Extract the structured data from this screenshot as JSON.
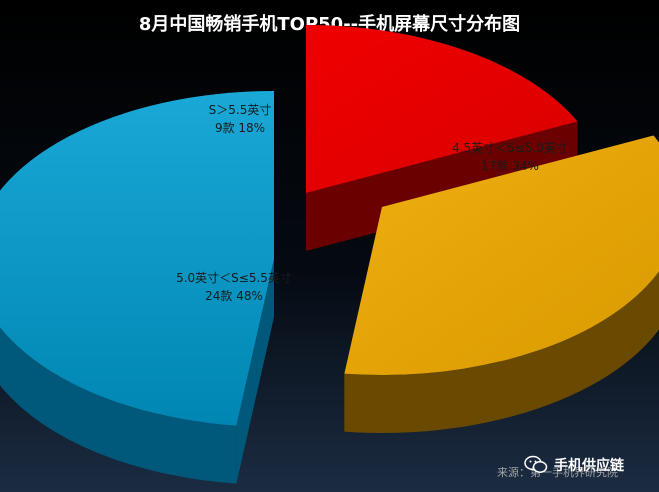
{
  "chart_data": {
    "type": "pie",
    "title": "8月中国畅销手机TOP50--手机屏幕尺寸分布图",
    "categories": [
      "S＞5.5英寸",
      "4.5英寸＜S≤5.0英寸",
      "5.0英寸＜S≤5.5英寸"
    ],
    "values": [
      18,
      34,
      48
    ],
    "counts": [
      9,
      17,
      24
    ],
    "count_labels": [
      "9款",
      "17款",
      "24款"
    ],
    "percent_labels": [
      "18%",
      "34%",
      "48%"
    ],
    "colors": [
      "#e00000",
      "#e0a000",
      "#0096c0"
    ],
    "exploded": true,
    "style": "3d"
  },
  "source": "来源：第一手机界研究院",
  "watermark": "手机供应链"
}
